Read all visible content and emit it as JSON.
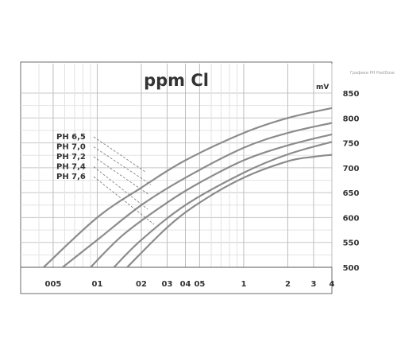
{
  "side_note": "Графики PH PoolDose",
  "chart_data": {
    "type": "line",
    "title": "ppm Cl",
    "ylabel": "mV",
    "xlabel": "",
    "x_scale": "log",
    "xlim": [
      0.03,
      4
    ],
    "ylim": [
      500,
      850
    ],
    "grid": true,
    "x_ticks": [
      {
        "value": 0.05,
        "label": "005"
      },
      {
        "value": 0.1,
        "label": "01"
      },
      {
        "value": 0.2,
        "label": "02"
      },
      {
        "value": 0.3,
        "label": "03"
      },
      {
        "value": 0.4,
        "label": "04"
      },
      {
        "value": 0.5,
        "label": "05"
      },
      {
        "value": 1,
        "label": "1"
      },
      {
        "value": 2,
        "label": "2"
      },
      {
        "value": 3,
        "label": "3"
      },
      {
        "value": 4,
        "label": "4"
      }
    ],
    "y_ticks": [
      500,
      550,
      600,
      650,
      700,
      750,
      800,
      850
    ],
    "series": [
      {
        "name": "PH 6,5",
        "x": [
          0.043,
          0.1,
          0.2,
          0.4,
          1,
          2,
          4
        ],
        "values": [
          500,
          600,
          660,
          715,
          770,
          800,
          820
        ]
      },
      {
        "name": "PH 7,0",
        "x": [
          0.058,
          0.1,
          0.2,
          0.4,
          1,
          2,
          4
        ],
        "values": [
          500,
          555,
          625,
          680,
          740,
          770,
          790
        ]
      },
      {
        "name": "PH 7,2",
        "x": [
          0.09,
          0.15,
          0.3,
          0.5,
          1,
          2,
          4
        ],
        "values": [
          500,
          565,
          630,
          670,
          715,
          745,
          767
        ]
      },
      {
        "name": "PH 7,4",
        "x": [
          0.13,
          0.2,
          0.4,
          1,
          2,
          4
        ],
        "values": [
          500,
          555,
          625,
          690,
          727,
          752
        ]
      },
      {
        "name": "PH 7,6",
        "x": [
          0.16,
          0.3,
          0.5,
          1,
          2,
          3,
          4
        ],
        "values": [
          500,
          580,
          630,
          680,
          713,
          722,
          726
        ]
      }
    ]
  }
}
